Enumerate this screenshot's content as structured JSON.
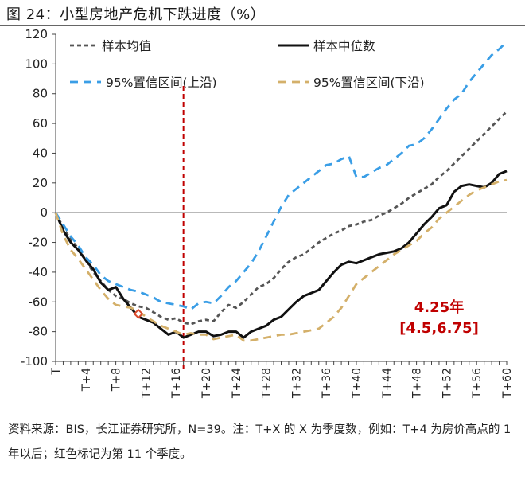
{
  "header": {
    "title": "图 24：小型房地产危机下跌进度（%）"
  },
  "footer": {
    "note": "资料来源：BIS，长江证券研究所，N=39。注：T+X 的 X 为季度数，例如：T+4 为房价高点的 1 年以后；红色标记为第 11 个季度。"
  },
  "chart_data": {
    "type": "line",
    "x": [
      0,
      1,
      2,
      3,
      4,
      5,
      6,
      7,
      8,
      9,
      10,
      11,
      12,
      13,
      14,
      15,
      16,
      17,
      18,
      19,
      20,
      21,
      22,
      23,
      24,
      25,
      26,
      27,
      28,
      29,
      30,
      31,
      32,
      33,
      34,
      35,
      36,
      37,
      38,
      39,
      40,
      41,
      42,
      43,
      44,
      45,
      46,
      47,
      48,
      49,
      50,
      51,
      52,
      53,
      54,
      55,
      56,
      57,
      58,
      59,
      60
    ],
    "xtick_labels": [
      "T",
      "T+4",
      "T+8",
      "T+12",
      "T+16",
      "T+20",
      "T+24",
      "T+28",
      "T+32",
      "T+36",
      "T+40",
      "T+44",
      "T+48",
      "T+52",
      "T+56",
      "T+60"
    ],
    "xtick_positions": [
      0,
      4,
      8,
      12,
      16,
      20,
      24,
      28,
      32,
      36,
      40,
      44,
      48,
      52,
      56,
      60
    ],
    "ylim": [
      -100,
      120
    ],
    "yticks": [
      -100,
      -80,
      -60,
      -40,
      -20,
      0,
      20,
      40,
      60,
      80,
      100,
      120
    ],
    "series": [
      {
        "name": "样本均值",
        "style": "dashed",
        "color": "#555555",
        "values": [
          0,
          -10,
          -18,
          -24,
          -32,
          -40,
          -46,
          -52,
          -56,
          -58,
          -61,
          -63,
          -64,
          -67,
          -70,
          -72,
          -71,
          -74,
          -75,
          -73,
          -72,
          -73,
          -67,
          -62,
          -64,
          -60,
          -55,
          -50,
          -48,
          -44,
          -38,
          -33,
          -30,
          -28,
          -24,
          -20,
          -17,
          -14,
          -12,
          -9,
          -8,
          -6,
          -5,
          -2,
          0,
          3,
          6,
          10,
          13,
          16,
          19,
          24,
          28,
          33,
          38,
          43,
          48,
          53,
          58,
          63,
          68
        ]
      },
      {
        "name": "样本中位数",
        "style": "solid",
        "color": "#111111",
        "values": [
          0,
          -12,
          -20,
          -25,
          -32,
          -38,
          -47,
          -52,
          -50,
          -58,
          -64,
          -70,
          -72,
          -74,
          -78,
          -82,
          -80,
          -84,
          -82,
          -80,
          -80,
          -83,
          -82,
          -80,
          -80,
          -84,
          -80,
          -78,
          -76,
          -72,
          -70,
          -65,
          -60,
          -56,
          -54,
          -52,
          -46,
          -40,
          -35,
          -33,
          -34,
          -32,
          -30,
          -28,
          -27,
          -26,
          -24,
          -20,
          -14,
          -8,
          -3,
          3,
          5,
          14,
          18,
          19,
          18,
          17,
          20,
          26,
          28
        ]
      },
      {
        "name": "95%置信区间(上沿)",
        "style": "dashed",
        "color": "#3a9ee6",
        "values": [
          0,
          -8,
          -16,
          -22,
          -30,
          -35,
          -42,
          -46,
          -48,
          -50,
          -52,
          -53,
          -55,
          -57,
          -60,
          -61,
          -62,
          -63,
          -65,
          -61,
          -60,
          -61,
          -56,
          -50,
          -46,
          -40,
          -34,
          -26,
          -16,
          -6,
          4,
          12,
          16,
          20,
          24,
          28,
          32,
          33,
          36,
          38,
          24,
          24,
          27,
          30,
          32,
          36,
          40,
          45,
          46,
          50,
          56,
          63,
          70,
          76,
          80,
          88,
          94,
          100,
          106,
          110,
          115
        ]
      },
      {
        "name": "95%置信区间(下沿)",
        "style": "dashed",
        "color": "#d4b06a",
        "values": [
          0,
          -15,
          -25,
          -31,
          -38,
          -45,
          -52,
          -58,
          -62,
          -63,
          -64,
          -66,
          -70,
          -73,
          -76,
          -78,
          -80,
          -82,
          -81,
          -82,
          -82,
          -85,
          -84,
          -83,
          -82,
          -86,
          -86,
          -85,
          -84,
          -83,
          -82,
          -82,
          -81,
          -80,
          -79,
          -78,
          -74,
          -70,
          -64,
          -56,
          -48,
          -44,
          -40,
          -36,
          -32,
          -28,
          -25,
          -22,
          -19,
          -14,
          -10,
          -4,
          0,
          4,
          8,
          12,
          15,
          17,
          19,
          21,
          22
        ]
      }
    ],
    "markers": [
      {
        "x": 11,
        "y": -68,
        "color": "#d94a2b",
        "shape": "diamond"
      }
    ],
    "vline": {
      "x": 17,
      "color": "#c00000",
      "style": "dashed"
    },
    "annotation": {
      "line1": "4.25年",
      "line2": "[4.5,6.75]"
    },
    "legend": [
      {
        "label": "样本均值",
        "series": 0
      },
      {
        "label": "样本中位数",
        "series": 1
      },
      {
        "label": "95%置信区间(上沿)",
        "series": 2
      },
      {
        "label": "95%置信区间(下沿)",
        "series": 3
      }
    ],
    "legend_position": "top-left",
    "grid": false
  }
}
